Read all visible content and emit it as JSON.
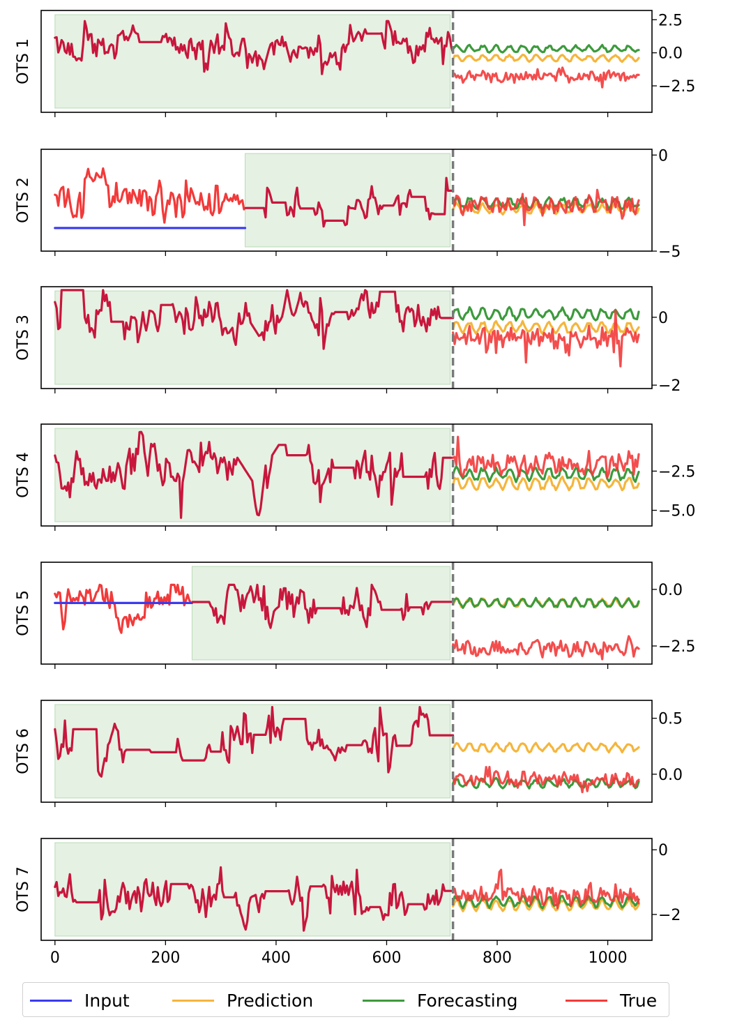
{
  "chart_data": {
    "type": "line",
    "xlabel": "",
    "xlim": [
      -25,
      1080
    ],
    "x_ticks": [
      0,
      200,
      400,
      600,
      800,
      1000
    ],
    "x_tick_labels": [
      "0",
      "200",
      "400",
      "600",
      "800",
      "1000"
    ],
    "split_x": 720,
    "forecast_end": 1056,
    "legend": {
      "placement": "bottom",
      "entries": [
        {
          "name": "Input",
          "color": "#3b3bf0"
        },
        {
          "name": "Prediction",
          "color": "#f5b53b"
        },
        {
          "name": "Forecasting",
          "color": "#3c9a3c"
        },
        {
          "name": "True",
          "color": "#f23a3a"
        }
      ]
    },
    "colors": {
      "input": "#3b3bf0",
      "prediction": "#f5b53b",
      "forecasting": "#3c9a3c",
      "true": "#f23a3a",
      "overlap": "#c8163c"
    },
    "panels": [
      {
        "ylabel": "OTS 1",
        "ylim": [
          -4.5,
          3.2
        ],
        "y_ticks": [
          2.5,
          0.0,
          -2.5
        ],
        "y_tick_labels": [
          "2.5",
          "0.0",
          "−2.5"
        ],
        "shade": [
          0,
          715
        ],
        "mismatch_end": 0,
        "history": {
          "level": 0.5,
          "range": [
            -2.0,
            2.4
          ],
          "dip": {
            "center": 370,
            "depth": 1.5,
            "width": 35
          }
        },
        "true_future": {
          "level": -1.8,
          "range": [
            -3.4,
            -0.4
          ]
        },
        "prediction_future": {
          "level": -0.4
        },
        "forecasting_future": {
          "level": 0.3
        }
      },
      {
        "ylabel": "OTS 2",
        "ylim": [
          -5.0,
          0.3
        ],
        "y_ticks": [
          0,
          -5
        ],
        "y_tick_labels": [
          "0",
          "−5"
        ],
        "shade": [
          344,
          715
        ],
        "mismatch_end": 344,
        "input_flat": -3.8,
        "history": {
          "level": -2.7,
          "range": [
            -3.9,
            -0.3
          ]
        },
        "true_future": {
          "level": -2.6,
          "range": [
            -4.6,
            -1.3
          ]
        },
        "prediction_future": {
          "level": -2.8
        },
        "forecasting_future": {
          "level": -2.5
        }
      },
      {
        "ylabel": "OTS 3",
        "ylim": [
          -2.1,
          0.9
        ],
        "y_ticks": [
          0,
          -2
        ],
        "y_tick_labels": [
          "0",
          "−2"
        ],
        "shade": [
          0,
          715
        ],
        "mismatch_end": 0,
        "history": {
          "level": 0.1,
          "range": [
            -1.4,
            0.8
          ],
          "dip": {
            "center": 370,
            "depth": 0.9,
            "width": 35
          }
        },
        "true_future": {
          "level": -0.6,
          "range": [
            -1.9,
            0.2
          ]
        },
        "prediction_future": {
          "level": -0.3
        },
        "forecasting_future": {
          "level": 0.1
        }
      },
      {
        "ylabel": "OTS 4",
        "ylim": [
          -6.0,
          0.5
        ],
        "y_ticks": [
          -2.5,
          -5.0
        ],
        "y_tick_labels": [
          "−2.5",
          "−5.0"
        ],
        "shade": [
          0,
          715
        ],
        "mismatch_end": 0,
        "history": {
          "level": -2.4,
          "range": [
            -5.5,
            0.0
          ],
          "dip": {
            "center": 365,
            "depth": 2.2,
            "width": 40
          }
        },
        "true_future": {
          "level": -2.0,
          "range": [
            -5.5,
            -0.5
          ]
        },
        "prediction_future": {
          "level": -3.3
        },
        "forecasting_future": {
          "level": -2.7
        }
      },
      {
        "ylabel": "OTS 5",
        "ylim": [
          -3.3,
          1.2
        ],
        "y_ticks": [
          0.0,
          -2.5
        ],
        "y_tick_labels": [
          "0.0",
          "−2.5"
        ],
        "shade": [
          248,
          715
        ],
        "mismatch_end": 248,
        "input_flat": -0.6,
        "history": {
          "level": -0.8,
          "range": [
            -3.0,
            0.2
          ]
        },
        "true_future": {
          "level": -2.6,
          "range": [
            -3.0,
            -0.6
          ]
        },
        "prediction_future": {
          "level": -0.6
        },
        "forecasting_future": {
          "level": -0.6
        }
      },
      {
        "ylabel": "OTS 6",
        "ylim": [
          -0.25,
          0.66
        ],
        "y_ticks": [
          0.5,
          0.0
        ],
        "y_tick_labels": [
          "0.5",
          "0.0"
        ],
        "shade": [
          0,
          715
        ],
        "mismatch_end": 0,
        "history": {
          "level": 0.28,
          "range": [
            -0.1,
            0.6
          ]
        },
        "true_future": {
          "level": -0.05,
          "range": [
            -0.2,
            0.28
          ]
        },
        "prediction_future": {
          "level": 0.24
        },
        "forecasting_future": {
          "level": -0.08
        }
      },
      {
        "ylabel": "OTS 7",
        "ylim": [
          -2.8,
          0.35
        ],
        "y_ticks": [
          0,
          -2
        ],
        "y_tick_labels": [
          "0",
          "−2"
        ],
        "shade": [
          0,
          715
        ],
        "mismatch_end": 0,
        "history": {
          "level": -1.6,
          "range": [
            -2.5,
            0.0
          ]
        },
        "true_future": {
          "level": -1.4,
          "range": [
            -2.1,
            0.0
          ]
        },
        "prediction_future": {
          "level": -1.7
        },
        "forecasting_future": {
          "level": -1.6
        }
      }
    ]
  }
}
